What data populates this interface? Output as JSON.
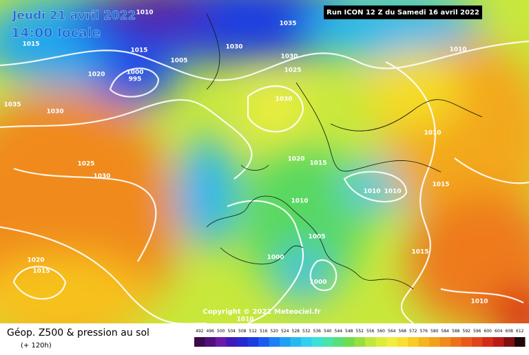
{
  "header": {
    "date": "Jeudi 21 avril 2022",
    "time": "14:00 locale",
    "run": "Run ICON 12 Z du Samedi 16 avril 2022"
  },
  "footer": {
    "title": "Géop. Z500 & pression au sol",
    "subtitle": "(+ 120h)",
    "copyright": "Copyright © 2022 Meteociel.fr"
  },
  "scale": {
    "labels": [
      492,
      496,
      500,
      504,
      508,
      512,
      516,
      520,
      524,
      528,
      532,
      536,
      540,
      544,
      548,
      552,
      556,
      560,
      564,
      568,
      572,
      576,
      580,
      584,
      588,
      592,
      596,
      600,
      604,
      608,
      612
    ]
  },
  "isobar_labels": [
    "1010",
    "1035",
    "1015",
    "1030",
    "1005",
    "1015",
    "1030",
    "1025",
    "1020",
    "1000",
    "995",
    "1030",
    "1035",
    "1030",
    "1025",
    "1030",
    "1020",
    "1015",
    "1010",
    "1010",
    "1010",
    "1005",
    "1000",
    "1000",
    "1020",
    "1015",
    "1010",
    "1010",
    "1015",
    "1015",
    "1010",
    "1010"
  ]
}
